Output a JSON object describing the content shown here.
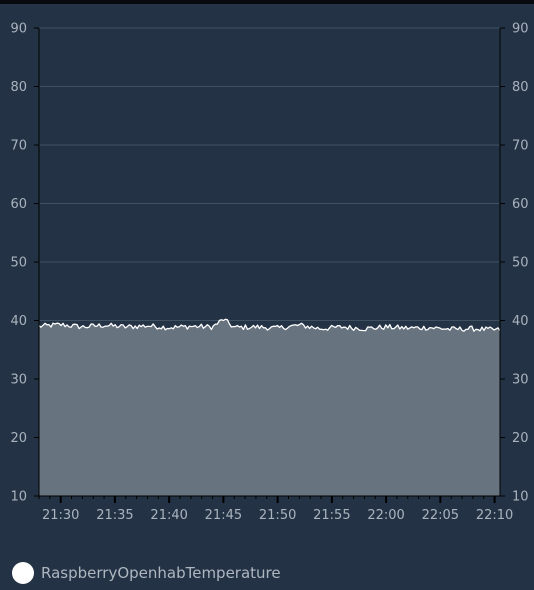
{
  "chart_data": {
    "type": "area",
    "title": "",
    "xlabel": "",
    "ylabel": "",
    "ylim": [
      10,
      90
    ],
    "y_ticks": [
      10,
      20,
      30,
      40,
      50,
      60,
      70,
      80,
      90
    ],
    "x_tick_labels": [
      "21:30",
      "21:35",
      "21:40",
      "21:45",
      "21:50",
      "21:55",
      "22:00",
      "22:05",
      "22:10"
    ],
    "x_range": [
      "21:28",
      "22:10.5"
    ],
    "grid": true,
    "y_axis_both_sides": true,
    "legend_placement": "bottom-left",
    "series": [
      {
        "name": "RaspberryOpenhabTemperature",
        "color": "#ffffff",
        "fill": "#67737f",
        "x": [
          "21:28",
          "21:30",
          "21:32",
          "21:34",
          "21:36",
          "21:38",
          "21:40",
          "21:42",
          "21:44",
          "21:45",
          "21:46",
          "21:48",
          "21:50",
          "21:52",
          "21:54",
          "21:56",
          "21:58",
          "22:00",
          "22:02",
          "22:04",
          "22:06",
          "22:08",
          "22:10"
        ],
        "values": [
          39.0,
          39.3,
          38.9,
          39.2,
          38.9,
          39.1,
          38.8,
          39.0,
          38.9,
          40.2,
          38.8,
          38.9,
          38.7,
          39.2,
          38.6,
          38.9,
          38.6,
          38.9,
          38.7,
          38.8,
          38.5,
          38.6,
          38.4
        ]
      }
    ]
  }
}
